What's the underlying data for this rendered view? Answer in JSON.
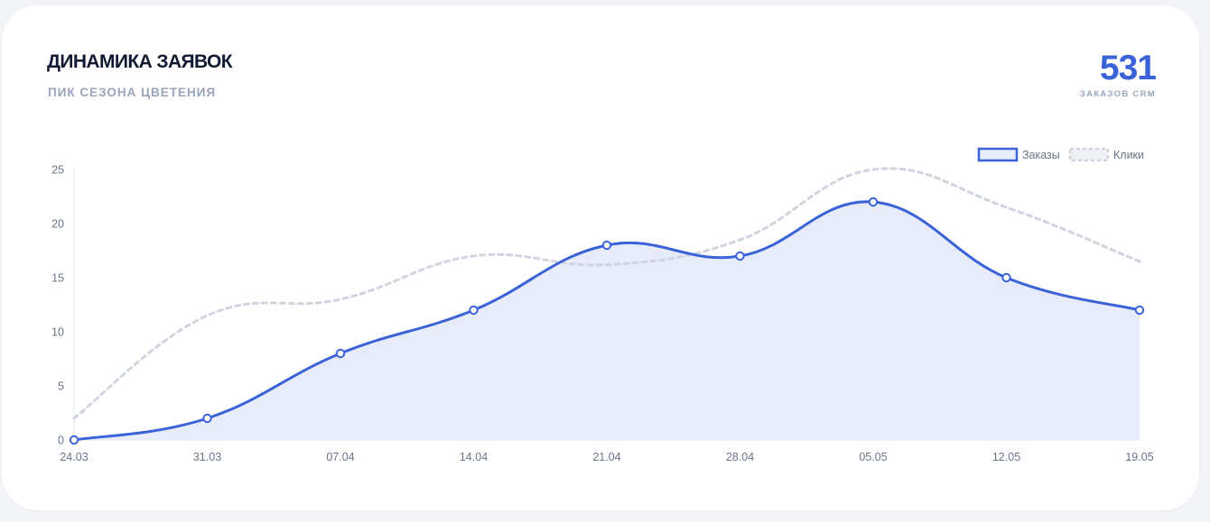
{
  "header": {
    "title": "ДИНАМИКА ЗАЯВОК",
    "subtitle": "ПИК СЕЗОНА ЦВЕТЕНИЯ",
    "kpi_value": "531",
    "kpi_label": "ЗАКАЗОВ CRM"
  },
  "colors": {
    "orders_line": "#3b63d9",
    "orders_fill": "#e8ebfa",
    "clicks_line": "#cfd4de",
    "axis": "#e2e6ee"
  },
  "chart_data": {
    "type": "line",
    "categories": [
      "24.03",
      "31.03",
      "07.04",
      "14.04",
      "21.04",
      "28.04",
      "05.05",
      "12.05",
      "19.05"
    ],
    "ylim": [
      0,
      25
    ],
    "yticks": [
      0,
      5,
      10,
      15,
      20,
      25
    ],
    "legend_position": "top-right",
    "grid": false,
    "series": [
      {
        "name": "Заказы",
        "values": [
          0,
          2,
          8,
          12,
          18,
          17,
          22,
          15,
          12
        ],
        "style": "solid-area"
      },
      {
        "name": "Клики",
        "values": [
          2,
          11.5,
          13,
          17,
          16.2,
          18.5,
          25,
          21.5,
          16.5
        ],
        "style": "dashed"
      }
    ]
  }
}
